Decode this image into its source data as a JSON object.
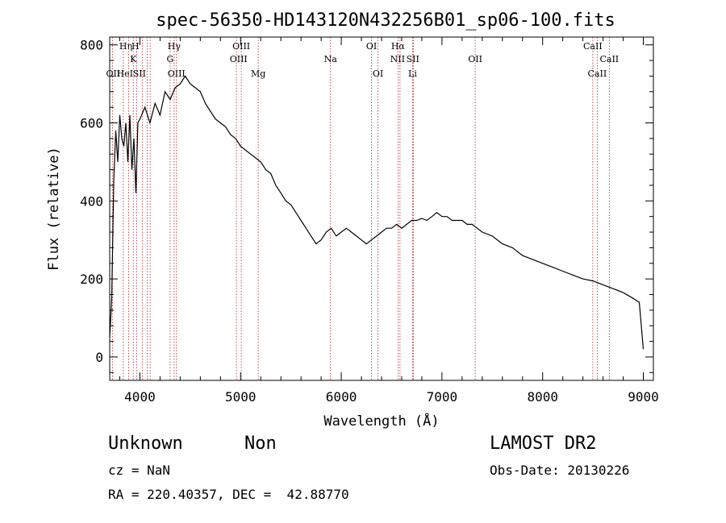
{
  "chart_data": {
    "type": "line",
    "title": "spec-56350-HD143120N432256B01_sp06-100.fits",
    "xlabel": "Wavelength (Å)",
    "ylabel": "Flux (relative)",
    "xlim": [
      3700,
      9100
    ],
    "ylim": [
      -60,
      820
    ],
    "xticks": [
      4000,
      5000,
      6000,
      7000,
      8000,
      9000
    ],
    "yticks": [
      0,
      200,
      400,
      600,
      800
    ],
    "grid": false,
    "series": [
      {
        "x": [
          3700,
          3720,
          3740,
          3760,
          3780,
          3800,
          3820,
          3840,
          3860,
          3880,
          3900,
          3920,
          3940,
          3960,
          3980,
          4000,
          4050,
          4100,
          4150,
          4200,
          4250,
          4300,
          4350,
          4400,
          4450,
          4500,
          4550,
          4600,
          4650,
          4700,
          4750,
          4800,
          4850,
          4900,
          4950,
          5000,
          5050,
          5100,
          5150,
          5200,
          5250,
          5300,
          5350,
          5400,
          5450,
          5500,
          5550,
          5600,
          5650,
          5700,
          5750,
          5800,
          5850,
          5900,
          5950,
          6000,
          6050,
          6100,
          6150,
          6200,
          6250,
          6300,
          6350,
          6400,
          6450,
          6500,
          6550,
          6600,
          6650,
          6700,
          6750,
          6800,
          6850,
          6900,
          6950,
          7000,
          7050,
          7100,
          7150,
          7200,
          7250,
          7300,
          7350,
          7400,
          7450,
          7500,
          7600,
          7700,
          7800,
          7900,
          8000,
          8100,
          8200,
          8300,
          8400,
          8500,
          8600,
          8700,
          8800,
          8900,
          8960,
          9000
        ],
        "y": [
          50,
          150,
          450,
          580,
          500,
          620,
          560,
          540,
          600,
          500,
          620,
          480,
          560,
          420,
          600,
          610,
          640,
          600,
          650,
          620,
          680,
          660,
          690,
          700,
          720,
          700,
          690,
          680,
          650,
          630,
          610,
          600,
          590,
          570,
          560,
          540,
          530,
          520,
          510,
          500,
          480,
          470,
          440,
          420,
          400,
          390,
          370,
          350,
          330,
          310,
          290,
          300,
          320,
          330,
          310,
          320,
          330,
          320,
          310,
          300,
          290,
          300,
          310,
          320,
          330,
          330,
          340,
          330,
          340,
          350,
          350,
          355,
          350,
          360,
          370,
          360,
          360,
          350,
          350,
          350,
          340,
          340,
          330,
          320,
          315,
          310,
          290,
          280,
          260,
          250,
          240,
          230,
          220,
          210,
          200,
          195,
          185,
          175,
          165,
          150,
          140,
          20
        ]
      }
    ],
    "annotations": [
      "Hη",
      "H",
      "K",
      "OII",
      "HeI",
      "SII",
      "Hγ",
      "G",
      "OIII",
      "OIII",
      "OIII",
      "Mg",
      "Na",
      "OI",
      "OI",
      "Hα",
      "NII",
      "SII",
      "Li",
      "OII",
      "CaII",
      "CaII",
      "CaII"
    ],
    "line_positions": [
      3727,
      3835,
      3889,
      3934,
      3969,
      4026,
      4072,
      4102,
      4300,
      4340,
      4363,
      4959,
      5007,
      5175,
      5893,
      6300,
      6364,
      6563,
      6583,
      6708,
      6717,
      7330,
      8498,
      8542,
      8662
    ]
  },
  "info": {
    "object_class": "Unknown",
    "subclass": "Non",
    "cz": "cz = NaN",
    "radec": "RA = 220.40357, DEC =  42.88770",
    "survey": "LAMOST DR2",
    "obs_date": "Obs-Date: 20130226"
  }
}
